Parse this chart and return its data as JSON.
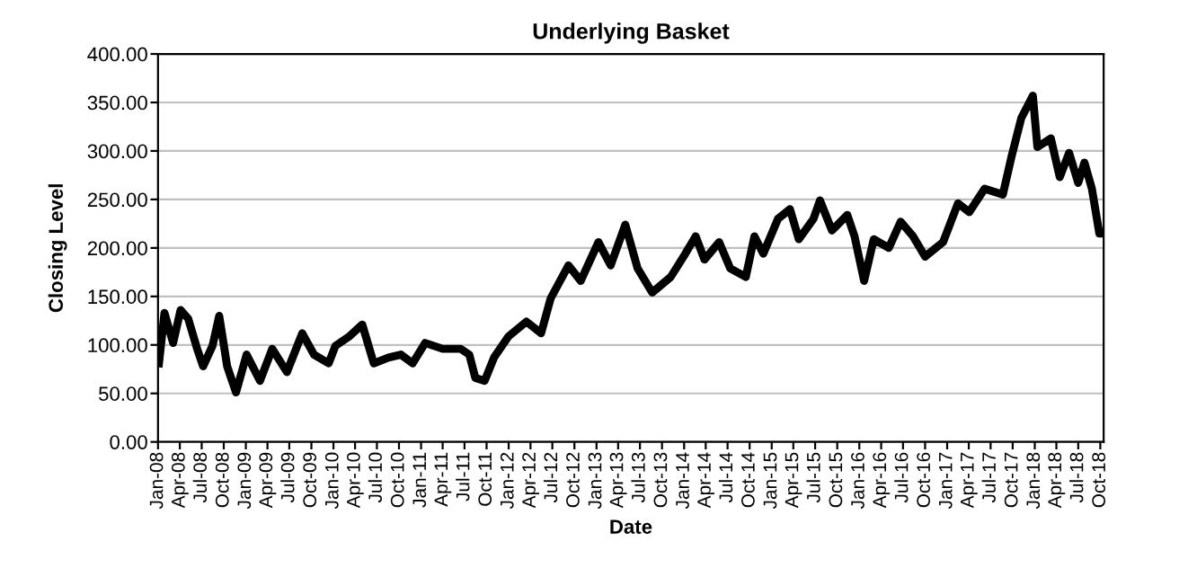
{
  "chart_data": {
    "type": "line",
    "title": "Underlying Basket",
    "xlabel": "Date",
    "ylabel": "Closing Level",
    "x": [
      "2008-01-05",
      "2008-01-28",
      "2008-03-04",
      "2008-04-04",
      "2008-05-06",
      "2008-06-12",
      "2008-07-07",
      "2008-08-15",
      "2008-09-12",
      "2008-10-15",
      "2008-11-21",
      "2009-01-04",
      "2009-03-01",
      "2009-04-21",
      "2009-06-21",
      "2009-08-24",
      "2009-10-12",
      "2009-12-12",
      "2010-01-09",
      "2010-03-09",
      "2010-05-01",
      "2010-06-18",
      "2010-08-18",
      "2010-10-09",
      "2010-11-27",
      "2011-01-18",
      "2011-04-01",
      "2011-06-15",
      "2011-07-21",
      "2011-08-15",
      "2011-09-23",
      "2011-11-01",
      "2012-01-01",
      "2012-03-15",
      "2012-05-15",
      "2012-06-24",
      "2012-09-06",
      "2012-10-27",
      "2013-01-09",
      "2013-03-01",
      "2013-05-01",
      "2013-06-21",
      "2013-08-21",
      "2013-11-06",
      "2014-01-06",
      "2014-02-18",
      "2014-03-27",
      "2014-05-27",
      "2014-07-12",
      "2014-09-15",
      "2014-10-21",
      "2014-11-27",
      "2015-01-27",
      "2015-03-18",
      "2015-04-24",
      "2015-06-24",
      "2015-07-21",
      "2015-09-09",
      "2015-11-12",
      "2015-12-12",
      "2016-01-21",
      "2016-03-01",
      "2016-05-03",
      "2016-06-21",
      "2016-08-12",
      "2016-10-01",
      "2016-12-15",
      "2017-02-15",
      "2017-04-03",
      "2017-06-06",
      "2017-08-21",
      "2017-09-27",
      "2017-11-06",
      "2017-12-24",
      "2018-01-12",
      "2018-03-09",
      "2018-04-15",
      "2018-05-24",
      "2018-07-01",
      "2018-07-27",
      "2018-08-27",
      "2018-09-27",
      "2018-10-12"
    ],
    "series": [
      {
        "color": "#000000",
        "values": [
          81,
          133,
          102,
          136,
          127,
          96,
          78,
          99,
          130,
          78,
          51,
          90,
          63,
          96,
          72,
          112,
          90,
          81,
          99,
          109,
          121,
          81,
          87,
          90,
          81,
          102,
          96,
          96,
          90,
          66,
          63,
          87,
          109,
          124,
          112,
          148,
          182,
          166,
          206,
          182,
          224,
          179,
          154,
          170,
          194,
          212,
          188,
          206,
          179,
          170,
          212,
          194,
          230,
          240,
          209,
          230,
          249,
          218,
          234,
          212,
          166,
          209,
          200,
          227,
          212,
          191,
          206,
          246,
          237,
          261,
          255,
          295,
          334,
          357,
          304,
          313,
          273,
          298,
          267,
          288,
          261,
          215,
          215
        ]
      }
    ],
    "xlim": [
      "2008-01-01",
      "2018-10-15"
    ],
    "xticks": [
      {
        "value": "2008-01-01",
        "label": "Jan-08"
      },
      {
        "value": "2008-04-01",
        "label": "Apr-08"
      },
      {
        "value": "2008-07-01",
        "label": "Jul-08"
      },
      {
        "value": "2008-10-01",
        "label": "Oct-08"
      },
      {
        "value": "2009-01-01",
        "label": "Jan-09"
      },
      {
        "value": "2009-04-01",
        "label": "Apr-09"
      },
      {
        "value": "2009-07-01",
        "label": "Jul-09"
      },
      {
        "value": "2009-10-01",
        "label": "Oct-09"
      },
      {
        "value": "2010-01-01",
        "label": "Jan-10"
      },
      {
        "value": "2010-04-01",
        "label": "Apr-10"
      },
      {
        "value": "2010-07-01",
        "label": "Jul-10"
      },
      {
        "value": "2010-10-01",
        "label": "Oct-10"
      },
      {
        "value": "2011-01-01",
        "label": "Jan-11"
      },
      {
        "value": "2011-04-01",
        "label": "Apr-11"
      },
      {
        "value": "2011-07-01",
        "label": "Jul-11"
      },
      {
        "value": "2011-10-01",
        "label": "Oct-11"
      },
      {
        "value": "2012-01-01",
        "label": "Jan-12"
      },
      {
        "value": "2012-04-01",
        "label": "Apr-12"
      },
      {
        "value": "2012-07-01",
        "label": "Jul-12"
      },
      {
        "value": "2012-10-01",
        "label": "Oct-12"
      },
      {
        "value": "2013-01-01",
        "label": "Jan-13"
      },
      {
        "value": "2013-04-01",
        "label": "Apr-13"
      },
      {
        "value": "2013-07-01",
        "label": "Jul-13"
      },
      {
        "value": "2013-10-01",
        "label": "Oct-13"
      },
      {
        "value": "2014-01-01",
        "label": "Jan-14"
      },
      {
        "value": "2014-04-01",
        "label": "Apr-14"
      },
      {
        "value": "2014-07-01",
        "label": "Jul-14"
      },
      {
        "value": "2014-10-01",
        "label": "Oct-14"
      },
      {
        "value": "2015-01-01",
        "label": "Jan-15"
      },
      {
        "value": "2015-04-01",
        "label": "Apr-15"
      },
      {
        "value": "2015-07-01",
        "label": "Jul-15"
      },
      {
        "value": "2015-10-01",
        "label": "Oct-15"
      },
      {
        "value": "2016-01-01",
        "label": "Jan-16"
      },
      {
        "value": "2016-04-01",
        "label": "Apr-16"
      },
      {
        "value": "2016-07-01",
        "label": "Jul-16"
      },
      {
        "value": "2016-10-01",
        "label": "Oct-16"
      },
      {
        "value": "2017-01-01",
        "label": "Jan-17"
      },
      {
        "value": "2017-04-01",
        "label": "Apr-17"
      },
      {
        "value": "2017-07-01",
        "label": "Jul-17"
      },
      {
        "value": "2017-10-01",
        "label": "Oct-17"
      },
      {
        "value": "2018-01-01",
        "label": "Jan-18"
      },
      {
        "value": "2018-04-01",
        "label": "Apr-18"
      },
      {
        "value": "2018-07-01",
        "label": "Jul-18"
      },
      {
        "value": "2018-10-01",
        "label": "Oct-18"
      }
    ],
    "ylim": [
      0,
      400
    ],
    "yticks": [
      {
        "value": 0,
        "label": "0.00"
      },
      {
        "value": 50,
        "label": "50.00"
      },
      {
        "value": 100,
        "label": "100.00"
      },
      {
        "value": 150,
        "label": "150.00"
      },
      {
        "value": 200,
        "label": "200.00"
      },
      {
        "value": 250,
        "label": "250.00"
      },
      {
        "value": 300,
        "label": "300.00"
      },
      {
        "value": 350,
        "label": "350.00"
      },
      {
        "value": 400,
        "label": "400.00"
      }
    ],
    "grid": "y",
    "legend": false,
    "marker": "none",
    "line_style": "solid"
  }
}
